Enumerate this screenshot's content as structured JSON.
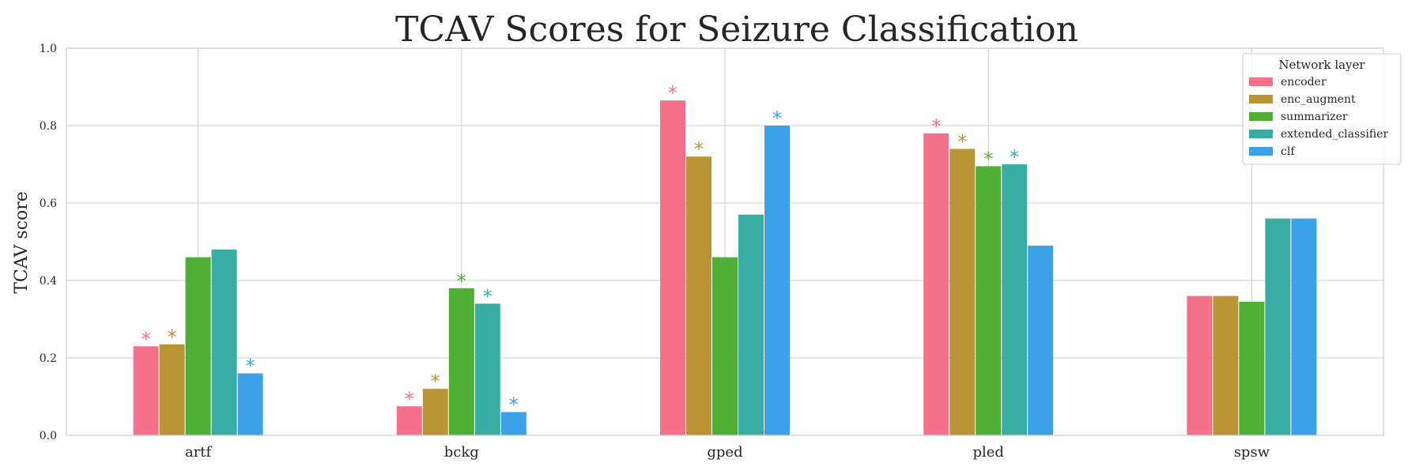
{
  "chart_data": {
    "type": "bar",
    "title": "TCAV Scores for Seizure Classification",
    "xlabel": "",
    "ylabel": "TCAV score",
    "ylim": [
      0,
      1.0
    ],
    "yticks": [
      "0.0",
      "0.2",
      "0.4",
      "0.6",
      "0.8",
      "1.0"
    ],
    "grid": true,
    "legend": {
      "title": "Network layer",
      "placement": "top-right"
    },
    "categories": [
      "artf",
      "bckg",
      "gped",
      "pled",
      "spsw"
    ],
    "significance_marker": "*",
    "series": [
      {
        "name": "encoder",
        "color": "#f5718a",
        "values": [
          0.23,
          0.075,
          0.865,
          0.78,
          0.36
        ],
        "significant": [
          true,
          true,
          true,
          true,
          false
        ]
      },
      {
        "name": "enc_augment",
        "color": "#b99535",
        "values": [
          0.235,
          0.12,
          0.72,
          0.74,
          0.36
        ],
        "significant": [
          true,
          true,
          true,
          true,
          false
        ]
      },
      {
        "name": "summarizer",
        "color": "#4daf33",
        "values": [
          0.46,
          0.38,
          0.46,
          0.695,
          0.345
        ],
        "significant": [
          false,
          true,
          false,
          true,
          false
        ]
      },
      {
        "name": "extended_classifier",
        "color": "#37ada3",
        "values": [
          0.48,
          0.34,
          0.57,
          0.7,
          0.56
        ],
        "significant": [
          false,
          true,
          false,
          true,
          false
        ]
      },
      {
        "name": "clf",
        "color": "#3ca2e8",
        "values": [
          0.16,
          0.06,
          0.8,
          0.49,
          0.56
        ],
        "significant": [
          true,
          true,
          true,
          false,
          false
        ]
      }
    ]
  }
}
